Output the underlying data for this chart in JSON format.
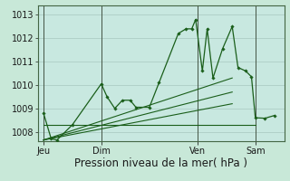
{
  "fig_bg_color": "#c8e8d8",
  "plot_bg_color": "#c8e8e0",
  "grid_color": "#a8c8c0",
  "line_color": "#1a5e1a",
  "marker_color": "#1a5e1a",
  "xlabel": "Pression niveau de la mer( hPa )",
  "x_ticks_labels": [
    "Jeu",
    "Dim",
    "Ven",
    "Sam"
  ],
  "x_ticks_pos": [
    0,
    3,
    8,
    11
  ],
  "ylim": [
    1007.6,
    1013.4
  ],
  "yticks": [
    1008,
    1009,
    1010,
    1011,
    1012,
    1013
  ],
  "series": [
    [
      0.0,
      1008.8
    ],
    [
      0.4,
      1007.7
    ],
    [
      0.7,
      1007.65
    ],
    [
      1.5,
      1008.3
    ],
    [
      3.0,
      1010.05
    ],
    [
      3.3,
      1009.5
    ],
    [
      3.7,
      1009.0
    ],
    [
      4.1,
      1009.35
    ],
    [
      4.5,
      1009.35
    ],
    [
      4.8,
      1009.05
    ],
    [
      5.5,
      1009.05
    ],
    [
      6.0,
      1010.1
    ],
    [
      7.0,
      1012.2
    ],
    [
      7.4,
      1012.4
    ],
    [
      7.7,
      1012.4
    ],
    [
      7.9,
      1012.8
    ],
    [
      8.25,
      1010.6
    ],
    [
      8.5,
      1012.4
    ],
    [
      8.8,
      1010.3
    ],
    [
      9.3,
      1011.55
    ],
    [
      9.8,
      1012.5
    ],
    [
      10.1,
      1010.75
    ],
    [
      10.5,
      1010.6
    ],
    [
      10.8,
      1010.35
    ],
    [
      11.0,
      1008.6
    ],
    [
      11.5,
      1008.58
    ],
    [
      12.0,
      1008.7
    ]
  ],
  "flat_line": [
    [
      0.0,
      1008.3
    ],
    [
      11.0,
      1008.3
    ]
  ],
  "trend_lines": [
    [
      [
        0.0,
        1007.65
      ],
      [
        9.8,
        1010.3
      ]
    ],
    [
      [
        0.0,
        1007.65
      ],
      [
        9.8,
        1009.7
      ]
    ],
    [
      [
        0.0,
        1007.65
      ],
      [
        9.8,
        1009.2
      ]
    ]
  ],
  "vlines_x": [
    0,
    3,
    8,
    11
  ],
  "xlim": [
    -0.3,
    12.5
  ],
  "title_fontsize": 8.5,
  "tick_fontsize": 7
}
